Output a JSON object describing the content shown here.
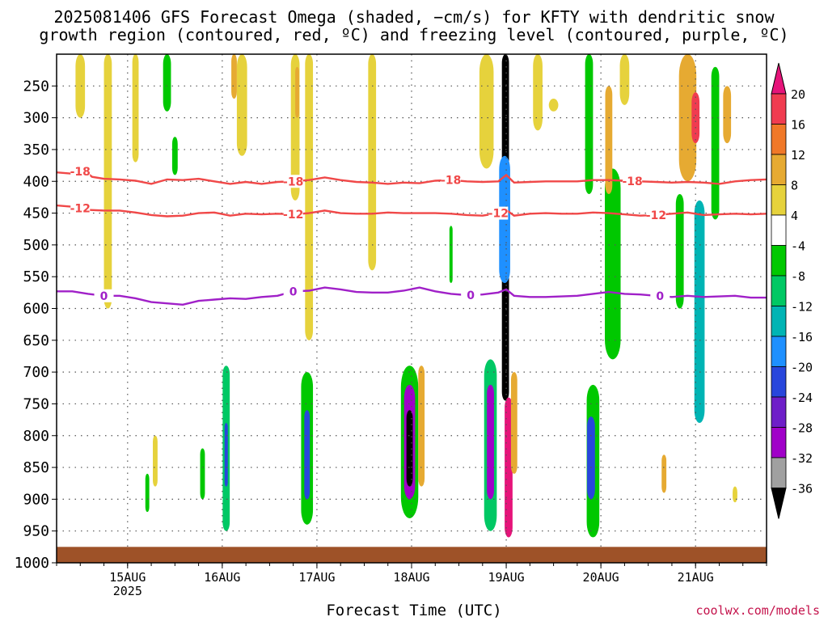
{
  "title_line1": "2025081406 GFS Forecast Omega (shaded, −cm/s) for KFTY with dendritic snow",
  "title_line2": "growth region (contoured, red, ºC) and freezing level (contoured, purple, ºC)",
  "credit": "coolwx.com/models",
  "colors": {
    "ground": "#9e5228",
    "red_contour": "#f04848",
    "purple_contour": "#a020c8",
    "grid": "#555555"
  },
  "chart_data": {
    "type": "heatmap",
    "xlabel": "Forecast Time (UTC)",
    "x_ticks": [
      {
        "label": "15AUG",
        "sublabel": "2025",
        "hours_from_start": 18
      },
      {
        "label": "16AUG",
        "sublabel": "",
        "hours_from_start": 42
      },
      {
        "label": "17AUG",
        "sublabel": "",
        "hours_from_start": 66
      },
      {
        "label": "18AUG",
        "sublabel": "",
        "hours_from_start": 90
      },
      {
        "label": "19AUG",
        "sublabel": "",
        "hours_from_start": 114
      },
      {
        "label": "20AUG",
        "sublabel": "",
        "hours_from_start": 138
      },
      {
        "label": "21AUG",
        "sublabel": "",
        "hours_from_start": 162
      }
    ],
    "x_range_hours": [
      0,
      180
    ],
    "y_ticks": [
      250,
      300,
      350,
      400,
      450,
      500,
      550,
      600,
      650,
      700,
      750,
      800,
      850,
      900,
      950,
      1000
    ],
    "y_range_hpa": [
      200,
      1000
    ],
    "ground_top_hpa": 975,
    "colorbar_labels": [
      "20",
      "16",
      "12",
      "8",
      "4",
      "-4",
      "-8",
      "-12",
      "-16",
      "-20",
      "-24",
      "-28",
      "-32",
      "-36"
    ],
    "colorbar_colors": [
      "#f03c50",
      "#f07828",
      "#e6aa32",
      "#e6d23c",
      "#ffffff",
      "#00c800",
      "#00c864",
      "#00b4b4",
      "#1e90ff",
      "#2846dc",
      "#6e1ec8",
      "#a000c8",
      "#a0a0a0",
      "#000000"
    ],
    "colorbar_top_arrow_color": "#e6147a",
    "colorbar_bottom_arrow_color": "#000000",
    "contours": [
      {
        "label": "-18",
        "color": "#f04848",
        "label_hours": [
          6,
          60,
          100,
          146
        ],
        "points": [
          [
            0,
            386
          ],
          [
            4,
            388
          ],
          [
            7,
            383
          ],
          [
            9,
            393
          ],
          [
            12,
            396
          ],
          [
            16,
            397
          ],
          [
            20,
            399
          ],
          [
            24,
            404
          ],
          [
            28,
            397
          ],
          [
            32,
            398
          ],
          [
            36,
            396
          ],
          [
            40,
            400
          ],
          [
            44,
            404
          ],
          [
            48,
            401
          ],
          [
            52,
            404
          ],
          [
            56,
            401
          ],
          [
            60,
            400
          ],
          [
            64,
            398
          ],
          [
            68,
            394
          ],
          [
            72,
            398
          ],
          [
            76,
            401
          ],
          [
            80,
            402
          ],
          [
            84,
            404
          ],
          [
            88,
            402
          ],
          [
            92,
            403
          ],
          [
            96,
            399
          ],
          [
            100,
            398
          ],
          [
            104,
            400
          ],
          [
            108,
            401
          ],
          [
            112,
            400
          ],
          [
            114,
            390
          ],
          [
            116,
            402
          ],
          [
            120,
            401
          ],
          [
            124,
            400
          ],
          [
            128,
            400
          ],
          [
            132,
            400
          ],
          [
            136,
            398
          ],
          [
            140,
            398
          ],
          [
            144,
            399
          ],
          [
            148,
            400
          ],
          [
            152,
            401
          ],
          [
            156,
            402
          ],
          [
            160,
            401
          ],
          [
            164,
            402
          ],
          [
            168,
            404
          ],
          [
            172,
            400
          ],
          [
            176,
            398
          ],
          [
            180,
            397
          ]
        ]
      },
      {
        "label": "-12",
        "color": "#f04848",
        "label_hours": [
          6,
          60,
          112,
          152
        ],
        "points": [
          [
            0,
            438
          ],
          [
            4,
            440
          ],
          [
            8,
            445
          ],
          [
            12,
            446
          ],
          [
            16,
            446
          ],
          [
            20,
            449
          ],
          [
            24,
            453
          ],
          [
            28,
            455
          ],
          [
            32,
            454
          ],
          [
            36,
            450
          ],
          [
            40,
            449
          ],
          [
            44,
            454
          ],
          [
            48,
            451
          ],
          [
            52,
            452
          ],
          [
            56,
            451
          ],
          [
            60,
            452
          ],
          [
            64,
            450
          ],
          [
            68,
            446
          ],
          [
            72,
            450
          ],
          [
            76,
            451
          ],
          [
            80,
            451
          ],
          [
            84,
            449
          ],
          [
            88,
            450
          ],
          [
            92,
            450
          ],
          [
            96,
            450
          ],
          [
            100,
            451
          ],
          [
            104,
            453
          ],
          [
            108,
            454
          ],
          [
            112,
            450
          ],
          [
            114,
            445
          ],
          [
            116,
            454
          ],
          [
            120,
            451
          ],
          [
            124,
            450
          ],
          [
            128,
            451
          ],
          [
            132,
            451
          ],
          [
            136,
            449
          ],
          [
            140,
            450
          ],
          [
            144,
            452
          ],
          [
            148,
            454
          ],
          [
            152,
            453
          ],
          [
            156,
            451
          ],
          [
            160,
            449
          ],
          [
            164,
            453
          ],
          [
            168,
            452
          ],
          [
            172,
            451
          ],
          [
            176,
            452
          ],
          [
            180,
            451
          ]
        ]
      },
      {
        "label": "0",
        "color": "#a020c8",
        "label_hours": [
          12,
          60,
          105,
          153
        ],
        "points": [
          [
            0,
            573
          ],
          [
            4,
            573
          ],
          [
            8,
            577
          ],
          [
            12,
            580
          ],
          [
            16,
            580
          ],
          [
            20,
            584
          ],
          [
            24,
            590
          ],
          [
            28,
            592
          ],
          [
            32,
            594
          ],
          [
            36,
            588
          ],
          [
            40,
            586
          ],
          [
            44,
            584
          ],
          [
            48,
            585
          ],
          [
            52,
            582
          ],
          [
            56,
            580
          ],
          [
            60,
            573
          ],
          [
            64,
            572
          ],
          [
            68,
            567
          ],
          [
            72,
            570
          ],
          [
            76,
            574
          ],
          [
            80,
            575
          ],
          [
            84,
            575
          ],
          [
            88,
            572
          ],
          [
            92,
            567
          ],
          [
            96,
            573
          ],
          [
            100,
            577
          ],
          [
            104,
            579
          ],
          [
            108,
            578
          ],
          [
            112,
            575
          ],
          [
            114,
            570
          ],
          [
            116,
            580
          ],
          [
            120,
            582
          ],
          [
            124,
            582
          ],
          [
            128,
            581
          ],
          [
            132,
            580
          ],
          [
            136,
            577
          ],
          [
            140,
            574
          ],
          [
            144,
            577
          ],
          [
            148,
            578
          ],
          [
            152,
            580
          ],
          [
            156,
            582
          ],
          [
            160,
            580
          ],
          [
            164,
            582
          ],
          [
            168,
            581
          ],
          [
            172,
            580
          ],
          [
            176,
            583
          ],
          [
            180,
            583
          ]
        ]
      }
    ],
    "shaded_features": [
      {
        "hours": 113.8,
        "p_top": 200,
        "p_bottom": 745,
        "half_width_h": 0.9,
        "color": "#000000"
      },
      {
        "hours": 113.6,
        "p_top": 360,
        "p_bottom": 560,
        "half_width_h": 1.4,
        "color": "#1e90ff"
      },
      {
        "hours": 114.6,
        "p_top": 740,
        "p_bottom": 960,
        "half_width_h": 1.0,
        "color": "#e6147a"
      },
      {
        "hours": 89.5,
        "p_top": 690,
        "p_bottom": 930,
        "half_width_h": 2.2,
        "color": "#00c800"
      },
      {
        "hours": 89.5,
        "p_top": 720,
        "p_bottom": 900,
        "half_width_h": 1.4,
        "color": "#a000c8"
      },
      {
        "hours": 89.5,
        "p_top": 760,
        "p_bottom": 880,
        "half_width_h": 0.8,
        "color": "#000000"
      },
      {
        "hours": 110.0,
        "p_top": 680,
        "p_bottom": 950,
        "half_width_h": 1.6,
        "color": "#00c864"
      },
      {
        "hours": 110.0,
        "p_top": 720,
        "p_bottom": 900,
        "half_width_h": 0.9,
        "color": "#a000c8"
      },
      {
        "hours": 63.5,
        "p_top": 700,
        "p_bottom": 940,
        "half_width_h": 1.5,
        "color": "#00c800"
      },
      {
        "hours": 63.5,
        "p_top": 760,
        "p_bottom": 900,
        "half_width_h": 0.7,
        "color": "#2846dc"
      },
      {
        "hours": 43.0,
        "p_top": 690,
        "p_bottom": 950,
        "half_width_h": 0.9,
        "color": "#00c864"
      },
      {
        "hours": 43.0,
        "p_top": 780,
        "p_bottom": 880,
        "half_width_h": 0.4,
        "color": "#2846dc"
      },
      {
        "hours": 136.0,
        "p_top": 720,
        "p_bottom": 960,
        "half_width_h": 1.6,
        "color": "#00c800"
      },
      {
        "hours": 135.5,
        "p_top": 770,
        "p_bottom": 900,
        "half_width_h": 1.0,
        "color": "#2846dc"
      },
      {
        "hours": 141.0,
        "p_top": 380,
        "p_bottom": 680,
        "half_width_h": 2.0,
        "color": "#00c800"
      },
      {
        "hours": 135.0,
        "p_top": 200,
        "p_bottom": 420,
        "half_width_h": 1.0,
        "color": "#00c800"
      },
      {
        "hours": 160.0,
        "p_top": 200,
        "p_bottom": 400,
        "half_width_h": 2.2,
        "color": "#e6aa32"
      },
      {
        "hours": 162.0,
        "p_top": 260,
        "p_bottom": 340,
        "half_width_h": 1.0,
        "color": "#f03c50"
      },
      {
        "hours": 167.0,
        "p_top": 220,
        "p_bottom": 460,
        "half_width_h": 1.0,
        "color": "#00c800"
      },
      {
        "hours": 163.0,
        "p_top": 430,
        "p_bottom": 780,
        "half_width_h": 1.3,
        "color": "#00b4b4"
      },
      {
        "hours": 170.0,
        "p_top": 250,
        "p_bottom": 340,
        "half_width_h": 1.0,
        "color": "#e6aa32"
      },
      {
        "hours": 158.0,
        "p_top": 420,
        "p_bottom": 600,
        "half_width_h": 1.0,
        "color": "#00c800"
      },
      {
        "hours": 60.5,
        "p_top": 200,
        "p_bottom": 430,
        "half_width_h": 1.1,
        "color": "#e6d23c"
      },
      {
        "hours": 61.0,
        "p_top": 220,
        "p_bottom": 300,
        "half_width_h": 0.5,
        "color": "#e6aa32"
      },
      {
        "hours": 64.0,
        "p_top": 200,
        "p_bottom": 650,
        "half_width_h": 1.0,
        "color": "#e6d23c"
      },
      {
        "hours": 28.0,
        "p_top": 200,
        "p_bottom": 290,
        "half_width_h": 1.0,
        "color": "#00c800"
      },
      {
        "hours": 30.0,
        "p_top": 330,
        "p_bottom": 390,
        "half_width_h": 0.7,
        "color": "#00c800"
      },
      {
        "hours": 6.0,
        "p_top": 200,
        "p_bottom": 300,
        "half_width_h": 1.2,
        "color": "#e6d23c"
      },
      {
        "hours": 13.0,
        "p_top": 200,
        "p_bottom": 600,
        "half_width_h": 1.0,
        "color": "#e6d23c"
      },
      {
        "hours": 20.0,
        "p_top": 200,
        "p_bottom": 370,
        "half_width_h": 0.8,
        "color": "#e6d23c"
      },
      {
        "hours": 47.0,
        "p_top": 200,
        "p_bottom": 360,
        "half_width_h": 1.3,
        "color": "#e6d23c"
      },
      {
        "hours": 45.0,
        "p_top": 200,
        "p_bottom": 270,
        "half_width_h": 0.7,
        "color": "#e6aa32"
      },
      {
        "hours": 80.0,
        "p_top": 200,
        "p_bottom": 540,
        "half_width_h": 1.0,
        "color": "#e6d23c"
      },
      {
        "hours": 109.0,
        "p_top": 200,
        "p_bottom": 380,
        "half_width_h": 1.8,
        "color": "#e6d23c"
      },
      {
        "hours": 122.0,
        "p_top": 200,
        "p_bottom": 320,
        "half_width_h": 1.2,
        "color": "#e6d23c"
      },
      {
        "hours": 126.0,
        "p_top": 270,
        "p_bottom": 290,
        "half_width_h": 1.2,
        "color": "#e6d23c"
      },
      {
        "hours": 144.0,
        "p_top": 200,
        "p_bottom": 280,
        "half_width_h": 1.2,
        "color": "#e6d23c"
      },
      {
        "hours": 140.0,
        "p_top": 250,
        "p_bottom": 420,
        "half_width_h": 0.9,
        "color": "#e6aa32"
      },
      {
        "hours": 92.5,
        "p_top": 690,
        "p_bottom": 880,
        "half_width_h": 0.8,
        "color": "#e6aa32"
      },
      {
        "hours": 116.0,
        "p_top": 700,
        "p_bottom": 860,
        "half_width_h": 0.8,
        "color": "#e6aa32"
      },
      {
        "hours": 154.0,
        "p_top": 830,
        "p_bottom": 890,
        "half_width_h": 0.6,
        "color": "#e6aa32"
      },
      {
        "hours": 172.0,
        "p_top": 880,
        "p_bottom": 905,
        "half_width_h": 0.6,
        "color": "#e6d23c"
      },
      {
        "hours": 25.0,
        "p_top": 800,
        "p_bottom": 880,
        "half_width_h": 0.6,
        "color": "#e6d23c"
      },
      {
        "hours": 37.0,
        "p_top": 820,
        "p_bottom": 900,
        "half_width_h": 0.6,
        "color": "#00c800"
      },
      {
        "hours": 23.0,
        "p_top": 860,
        "p_bottom": 920,
        "half_width_h": 0.5,
        "color": "#00c800"
      },
      {
        "hours": 100.0,
        "p_top": 470,
        "p_bottom": 560,
        "half_width_h": 0.4,
        "color": "#00c800"
      }
    ]
  }
}
